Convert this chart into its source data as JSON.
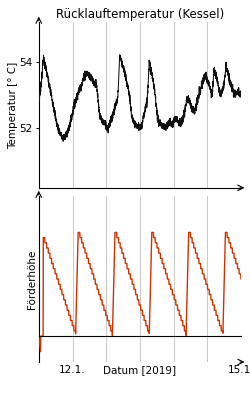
{
  "title": "Rücklauftemperatur (Kessel)",
  "temp_ylabel": "Temperatur [° C]",
  "pump_ylabel": "Förderhöhe",
  "xlabel": "Datum [2019]",
  "temp_yticks": [
    52,
    54
  ],
  "temp_ylim": [
    50.2,
    55.2
  ],
  "pump_ylim": [
    -0.25,
    1.35
  ],
  "line_color": "#111111",
  "pump_color": "#cc3300",
  "vline_color": "#c8c8c8",
  "background_color": "#ffffff",
  "title_fontsize": 8.5,
  "axis_fontsize": 7.5,
  "tick_fontsize": 7.5,
  "vline_positions": [
    0.167,
    0.333,
    0.5,
    0.667,
    0.833
  ]
}
